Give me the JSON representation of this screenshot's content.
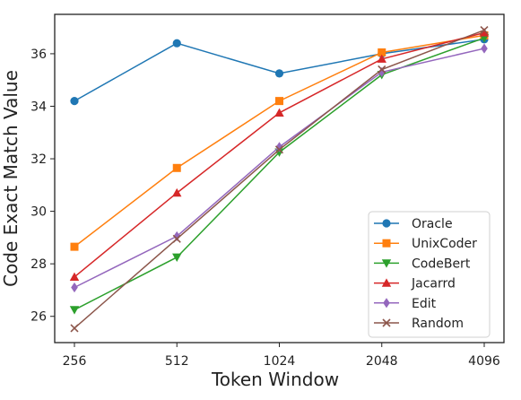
{
  "chart_data": {
    "type": "line",
    "xlabel": "Token Window",
    "ylabel": "Code Exact Match Value",
    "categories": [
      "256",
      "512",
      "1024",
      "2048",
      "4096"
    ],
    "ylim": [
      25,
      37.5
    ],
    "yticks": [
      26,
      28,
      30,
      32,
      34,
      36
    ],
    "grid": false,
    "legend_position": "bottom-right",
    "series": [
      {
        "name": "Oracle",
        "color": "#1f77b4",
        "marker": "circle",
        "values": [
          34.2,
          36.4,
          35.25,
          36.0,
          36.55
        ]
      },
      {
        "name": "UnixCoder",
        "color": "#ff7f0e",
        "marker": "square",
        "values": [
          28.65,
          31.65,
          34.2,
          36.05,
          36.7
        ]
      },
      {
        "name": "CodeBert",
        "color": "#2ca02c",
        "marker": "triangle-down",
        "values": [
          26.25,
          28.25,
          32.25,
          35.2,
          36.6
        ]
      },
      {
        "name": "Jacarrd",
        "color": "#d62728",
        "marker": "triangle-up",
        "values": [
          27.5,
          30.7,
          33.75,
          35.8,
          36.8
        ]
      },
      {
        "name": "Edit",
        "color": "#9467bd",
        "marker": "diamond",
        "values": [
          27.1,
          29.05,
          32.45,
          35.3,
          36.2
        ]
      },
      {
        "name": "Random",
        "color": "#8c564b",
        "marker": "x",
        "values": [
          25.55,
          28.95,
          32.35,
          35.4,
          36.9
        ]
      }
    ]
  }
}
